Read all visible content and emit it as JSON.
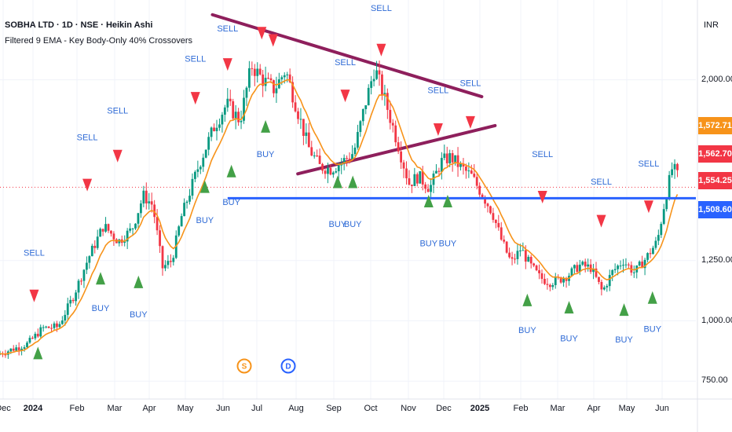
{
  "header": {
    "title": "SOBHA LTD · 1D · NSE · Heikin Ashi",
    "indicator": "Filtered 9 EMA - Key Body-Only 40% Crossovers",
    "currency": "INR"
  },
  "price_badges": [
    {
      "text": "1,572.71",
      "color": "#f7931a"
    },
    {
      "text": "1,562.70",
      "color": "#f23645"
    },
    {
      "text": "1,554.25",
      "color": "#f23645"
    },
    {
      "text": "1,508.60",
      "color": "#2962ff"
    }
  ],
  "axis_markers": [
    {
      "letter": "S",
      "color": "#f7931a"
    },
    {
      "letter": "D",
      "color": "#2962ff"
    }
  ],
  "chart_data": {
    "type": "candlestick",
    "y_ticks": [
      "2,000.00",
      "1,250.00",
      "1,000.00",
      "750.00"
    ],
    "y_tick_values": [
      2000,
      1250,
      1000,
      750
    ],
    "x_ticks": [
      {
        "label": "Dec",
        "bold": false
      },
      {
        "label": "2024",
        "bold": true
      },
      {
        "label": "Feb",
        "bold": false
      },
      {
        "label": "Mar",
        "bold": false
      },
      {
        "label": "Apr",
        "bold": false
      },
      {
        "label": "May",
        "bold": false
      },
      {
        "label": "Jun",
        "bold": false
      },
      {
        "label": "Jul",
        "bold": false
      },
      {
        "label": "Aug",
        "bold": false
      },
      {
        "label": "Sep",
        "bold": false
      },
      {
        "label": "Oct",
        "bold": false
      },
      {
        "label": "Nov",
        "bold": false
      },
      {
        "label": "Dec",
        "bold": false
      },
      {
        "label": "2025",
        "bold": true
      },
      {
        "label": "Feb",
        "bold": false
      },
      {
        "label": "Mar",
        "bold": false
      },
      {
        "label": "Apr",
        "bold": false
      },
      {
        "label": "May",
        "bold": false
      },
      {
        "label": "Jun",
        "bold": false
      }
    ],
    "price_series": [
      {
        "t": 0,
        "v": 860
      },
      {
        "t": 0.8,
        "v": 905
      },
      {
        "t": 1.2,
        "v": 970
      },
      {
        "t": 1.6,
        "v": 975
      },
      {
        "t": 2.0,
        "v": 1100
      },
      {
        "t": 2.4,
        "v": 1260
      },
      {
        "t": 2.8,
        "v": 1395
      },
      {
        "t": 3.2,
        "v": 1330
      },
      {
        "t": 3.55,
        "v": 1380
      },
      {
        "t": 3.85,
        "v": 1520
      },
      {
        "t": 4.1,
        "v": 1480
      },
      {
        "t": 4.35,
        "v": 1220
      },
      {
        "t": 4.6,
        "v": 1250
      },
      {
        "t": 4.85,
        "v": 1430
      },
      {
        "t": 5.3,
        "v": 1640
      },
      {
        "t": 5.7,
        "v": 1800
      },
      {
        "t": 6.05,
        "v": 1900
      },
      {
        "t": 6.4,
        "v": 1830
      },
      {
        "t": 6.7,
        "v": 2060
      },
      {
        "t": 7.0,
        "v": 2000
      },
      {
        "t": 7.3,
        "v": 1960
      },
      {
        "t": 7.6,
        "v": 2040
      },
      {
        "t": 7.9,
        "v": 1880
      },
      {
        "t": 8.2,
        "v": 1720
      },
      {
        "t": 8.5,
        "v": 1640
      },
      {
        "t": 8.8,
        "v": 1630
      },
      {
        "t": 9.1,
        "v": 1660
      },
      {
        "t": 9.4,
        "v": 1700
      },
      {
        "t": 9.7,
        "v": 1900
      },
      {
        "t": 9.95,
        "v": 2050
      },
      {
        "t": 10.25,
        "v": 1900
      },
      {
        "t": 10.55,
        "v": 1740
      },
      {
        "t": 10.85,
        "v": 1570
      },
      {
        "t": 11.1,
        "v": 1600
      },
      {
        "t": 11.4,
        "v": 1550
      },
      {
        "t": 11.7,
        "v": 1660
      },
      {
        "t": 11.95,
        "v": 1680
      },
      {
        "t": 12.2,
        "v": 1640
      },
      {
        "t": 12.5,
        "v": 1600
      },
      {
        "t": 12.8,
        "v": 1520
      },
      {
        "t": 13.05,
        "v": 1450
      },
      {
        "t": 13.3,
        "v": 1330
      },
      {
        "t": 13.55,
        "v": 1240
      },
      {
        "t": 13.8,
        "v": 1300
      },
      {
        "t": 14.05,
        "v": 1230
      },
      {
        "t": 14.3,
        "v": 1180
      },
      {
        "t": 14.55,
        "v": 1160
      },
      {
        "t": 14.8,
        "v": 1170
      },
      {
        "t": 15.05,
        "v": 1190
      },
      {
        "t": 15.35,
        "v": 1230
      },
      {
        "t": 15.65,
        "v": 1220
      },
      {
        "t": 15.95,
        "v": 1120
      },
      {
        "t": 16.2,
        "v": 1200
      },
      {
        "t": 16.5,
        "v": 1250
      },
      {
        "t": 16.8,
        "v": 1200
      },
      {
        "t": 17.1,
        "v": 1260
      },
      {
        "t": 17.4,
        "v": 1330
      },
      {
        "t": 17.6,
        "v": 1500
      },
      {
        "t": 17.8,
        "v": 1640
      },
      {
        "t": 17.95,
        "v": 1595
      }
    ],
    "signals": [
      {
        "type": "SELL",
        "t": 0.9,
        "arrow_v": 1100,
        "label_v": 1270
      },
      {
        "type": "BUY",
        "t": 1.0,
        "arrow_v": 870,
        "label_v": null
      },
      {
        "type": "SELL",
        "t": 2.3,
        "arrow_v": 1560,
        "label_v": 1750
      },
      {
        "type": "BUY",
        "t": 2.65,
        "arrow_v": 1180,
        "label_v": 1040
      },
      {
        "type": "SELL",
        "t": 3.1,
        "arrow_v": 1680,
        "label_v": 1860
      },
      {
        "type": "BUY",
        "t": 3.65,
        "arrow_v": 1165,
        "label_v": 1015
      },
      {
        "type": "SELL",
        "t": 5.15,
        "arrow_v": 1920,
        "label_v": 2075
      },
      {
        "type": "BUY",
        "t": 5.4,
        "arrow_v": 1560,
        "label_v": 1405
      },
      {
        "type": "BUY",
        "t": 6.1,
        "arrow_v": 1625,
        "label_v": 1480
      },
      {
        "type": "SELL",
        "t": 6.0,
        "arrow_v": 2060,
        "label_v": 2200
      },
      {
        "type": "SELL",
        "t": 6.9,
        "arrow_v": 2190,
        "label_v": 2380
      },
      {
        "type": "SELL",
        "t": 7.2,
        "arrow_v": 2160,
        "label_v": null
      },
      {
        "type": "BUY",
        "t": 7.0,
        "arrow_v": 1810,
        "label_v": 1680
      },
      {
        "type": "BUY",
        "t": 8.9,
        "arrow_v": 1580,
        "label_v": 1390
      },
      {
        "type": "BUY",
        "t": 9.3,
        "arrow_v": 1580,
        "label_v": 1390
      },
      {
        "type": "SELL",
        "t": 9.1,
        "arrow_v": 1930,
        "label_v": 2060
      },
      {
        "type": "SELL",
        "t": 10.05,
        "arrow_v": 2120,
        "label_v": 2285
      },
      {
        "type": "SELL",
        "t": 11.55,
        "arrow_v": 1790,
        "label_v": 1945
      },
      {
        "type": "BUY",
        "t": 11.3,
        "arrow_v": 1500,
        "label_v": 1310
      },
      {
        "type": "BUY",
        "t": 11.8,
        "arrow_v": 1500,
        "label_v": 1310
      },
      {
        "type": "SELL",
        "t": 12.4,
        "arrow_v": 1820,
        "label_v": 1975
      },
      {
        "type": "SELL",
        "t": 14.3,
        "arrow_v": 1510,
        "label_v": 1680
      },
      {
        "type": "BUY",
        "t": 13.9,
        "arrow_v": 1090,
        "label_v": 950
      },
      {
        "type": "BUY",
        "t": 15.0,
        "arrow_v": 1060,
        "label_v": 915
      },
      {
        "type": "SELL",
        "t": 15.85,
        "arrow_v": 1410,
        "label_v": 1565
      },
      {
        "type": "BUY",
        "t": 16.45,
        "arrow_v": 1050,
        "label_v": 910
      },
      {
        "type": "SELL",
        "t": 17.1,
        "arrow_v": 1470,
        "label_v": 1640
      },
      {
        "type": "BUY",
        "t": 17.2,
        "arrow_v": 1100,
        "label_v": 955
      }
    ],
    "trendlines": [
      {
        "from": {
          "t": 5.6,
          "v": 2270
        },
        "to": {
          "t": 12.7,
          "v": 1930
        },
        "color": "#8e1f5c"
      },
      {
        "from": {
          "t": 7.85,
          "v": 1610
        },
        "to": {
          "t": 13.05,
          "v": 1810
        },
        "color": "#8e1f5c"
      }
    ],
    "horizontal_lines": [
      {
        "v": 1508.6,
        "from_t": 6.0,
        "color": "#2962ff"
      }
    ],
    "dotted_price_line": 1554.25
  }
}
